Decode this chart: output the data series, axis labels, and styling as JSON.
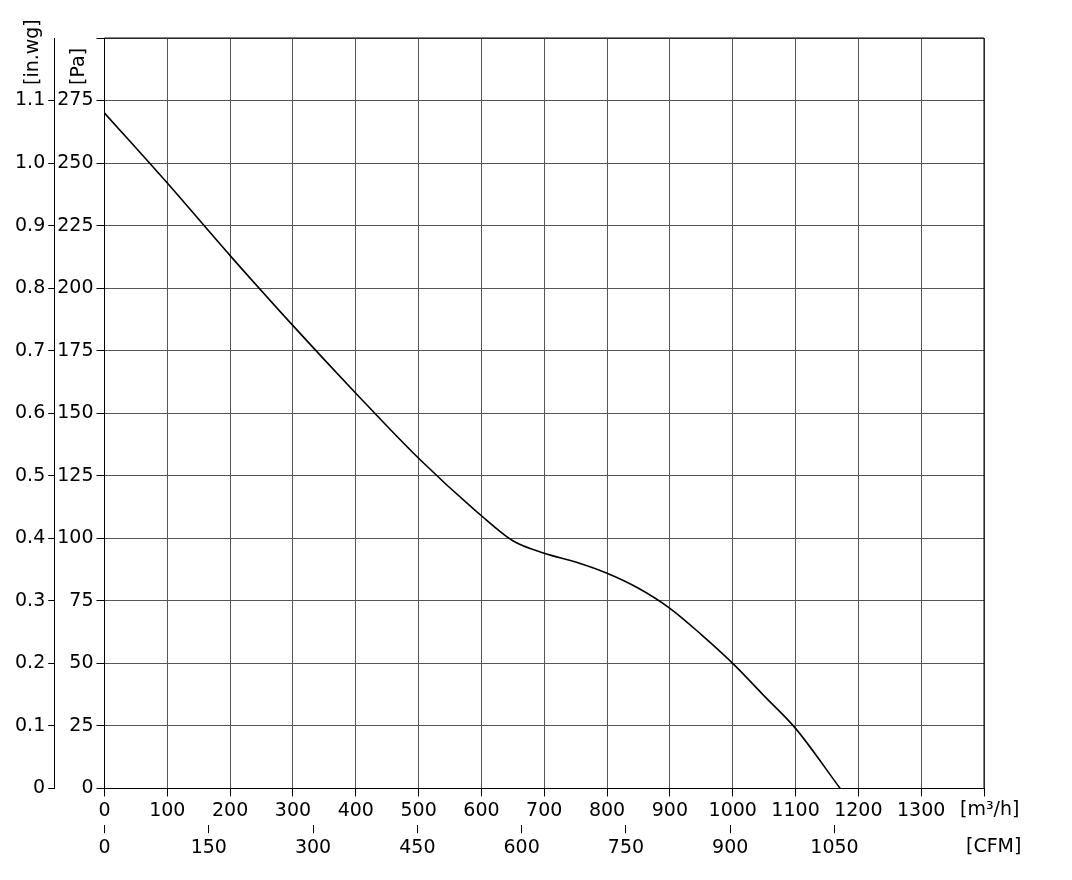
{
  "chart_data": {
    "type": "line",
    "xlabel": "[m³/h]",
    "x2label": "[CFM]",
    "ylabel": "[Pa]",
    "y2label": "[in.wg]",
    "xlim": [
      0,
      1400
    ],
    "xticks": [
      0,
      100,
      200,
      300,
      400,
      500,
      600,
      700,
      800,
      900,
      1000,
      1100,
      1200,
      1300,
      {
        "value": 1400,
        "label": null
      }
    ],
    "x2lim": [
      0,
      1265
    ],
    "x2ticks": [
      0,
      150,
      300,
      450,
      600,
      750,
      900,
      1050
    ],
    "ylim": [
      0,
      300
    ],
    "yticks": [
      0,
      25,
      50,
      75,
      100,
      125,
      150,
      175,
      200,
      225,
      250,
      275,
      {
        "value": 300,
        "label": null
      }
    ],
    "y2lim": [
      0,
      1.2
    ],
    "y2ticks": [
      0,
      0.1,
      0.2,
      0.3,
      0.4,
      0.5,
      0.6,
      0.7,
      0.8,
      0.9,
      {
        "value": 1,
        "label": "1.0"
      },
      1.1
    ],
    "grid": true,
    "marker": "none",
    "line_style": "solid",
    "series": [
      {
        "color": "#000000",
        "x": [
          0,
          100,
          200,
          300,
          400,
          500,
          600,
          650,
          700,
          750,
          800,
          850,
          900,
          950,
          1000,
          1050,
          1100,
          1171
        ],
        "values": [
          270,
          242,
          213,
          185,
          158,
          132,
          109,
          99,
          94,
          90.5,
          86,
          80,
          72,
          61.5,
          50,
          37,
          24,
          0
        ]
      }
    ]
  }
}
